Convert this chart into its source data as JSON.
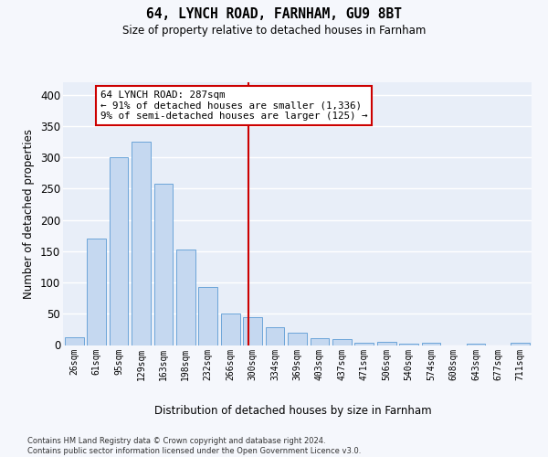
{
  "title": "64, LYNCH ROAD, FARNHAM, GU9 8BT",
  "subtitle": "Size of property relative to detached houses in Farnham",
  "xlabel": "Distribution of detached houses by size in Farnham",
  "ylabel": "Number of detached properties",
  "bar_labels": [
    "26sqm",
    "61sqm",
    "95sqm",
    "129sqm",
    "163sqm",
    "198sqm",
    "232sqm",
    "266sqm",
    "300sqm",
    "334sqm",
    "369sqm",
    "403sqm",
    "437sqm",
    "471sqm",
    "506sqm",
    "540sqm",
    "574sqm",
    "608sqm",
    "643sqm",
    "677sqm",
    "711sqm"
  ],
  "bar_heights": [
    13,
    170,
    300,
    325,
    258,
    152,
    93,
    50,
    44,
    28,
    20,
    11,
    10,
    3,
    5,
    2,
    3,
    0,
    2,
    0,
    3
  ],
  "bar_color": "#c5d8f0",
  "bar_edge_color": "#5b9bd5",
  "vline_x_index": 7.82,
  "vline_color": "#cc0000",
  "annotation_text_line0": "64 LYNCH ROAD: 287sqm",
  "annotation_text_line1": "← 91% of detached houses are smaller (1,336)",
  "annotation_text_line2": "9% of semi-detached houses are larger (125) →",
  "ylim": [
    0,
    420
  ],
  "yticks": [
    0,
    50,
    100,
    150,
    200,
    250,
    300,
    350,
    400
  ],
  "plot_bg": "#e8eef8",
  "grid_color": "#ffffff",
  "fig_bg": "#f5f7fc",
  "footer_line1": "Contains HM Land Registry data © Crown copyright and database right 2024.",
  "footer_line2": "Contains public sector information licensed under the Open Government Licence v3.0."
}
